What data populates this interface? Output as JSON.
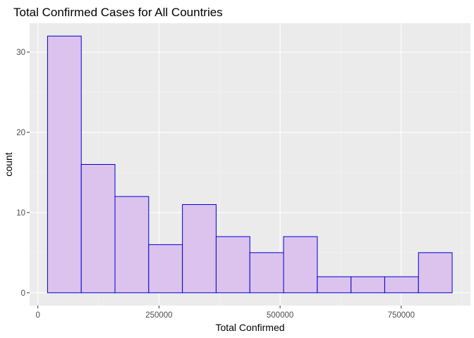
{
  "chart_data": {
    "type": "bar",
    "title": "Total Confirmed Cases for All Countries",
    "xlabel": "Total Confirmed",
    "ylabel": "count",
    "bin_edges": [
      20000,
      89600,
      159200,
      228800,
      298400,
      368000,
      437600,
      507200,
      576800,
      646400,
      716000,
      785600,
      855200
    ],
    "values": [
      32,
      16,
      12,
      6,
      11,
      7,
      5,
      7,
      2,
      2,
      2,
      5
    ],
    "xlim": [
      -17000,
      893000
    ],
    "ylim": [
      -1.6,
      33.6
    ],
    "x_ticks": [
      0,
      250000,
      500000,
      750000
    ],
    "x_tick_labels": [
      "0",
      "250000",
      "500000",
      "750000"
    ],
    "y_ticks": [
      0,
      10,
      20,
      30
    ],
    "y_tick_labels": [
      "0",
      "10",
      "20",
      "30"
    ],
    "grid": true,
    "colors": {
      "panel_background": "#ebebeb",
      "grid_major": "#ffffff",
      "grid_minor": "#f5f5f5",
      "bar_fill": "#dcc3ee",
      "bar_stroke": "#0000cc"
    }
  }
}
